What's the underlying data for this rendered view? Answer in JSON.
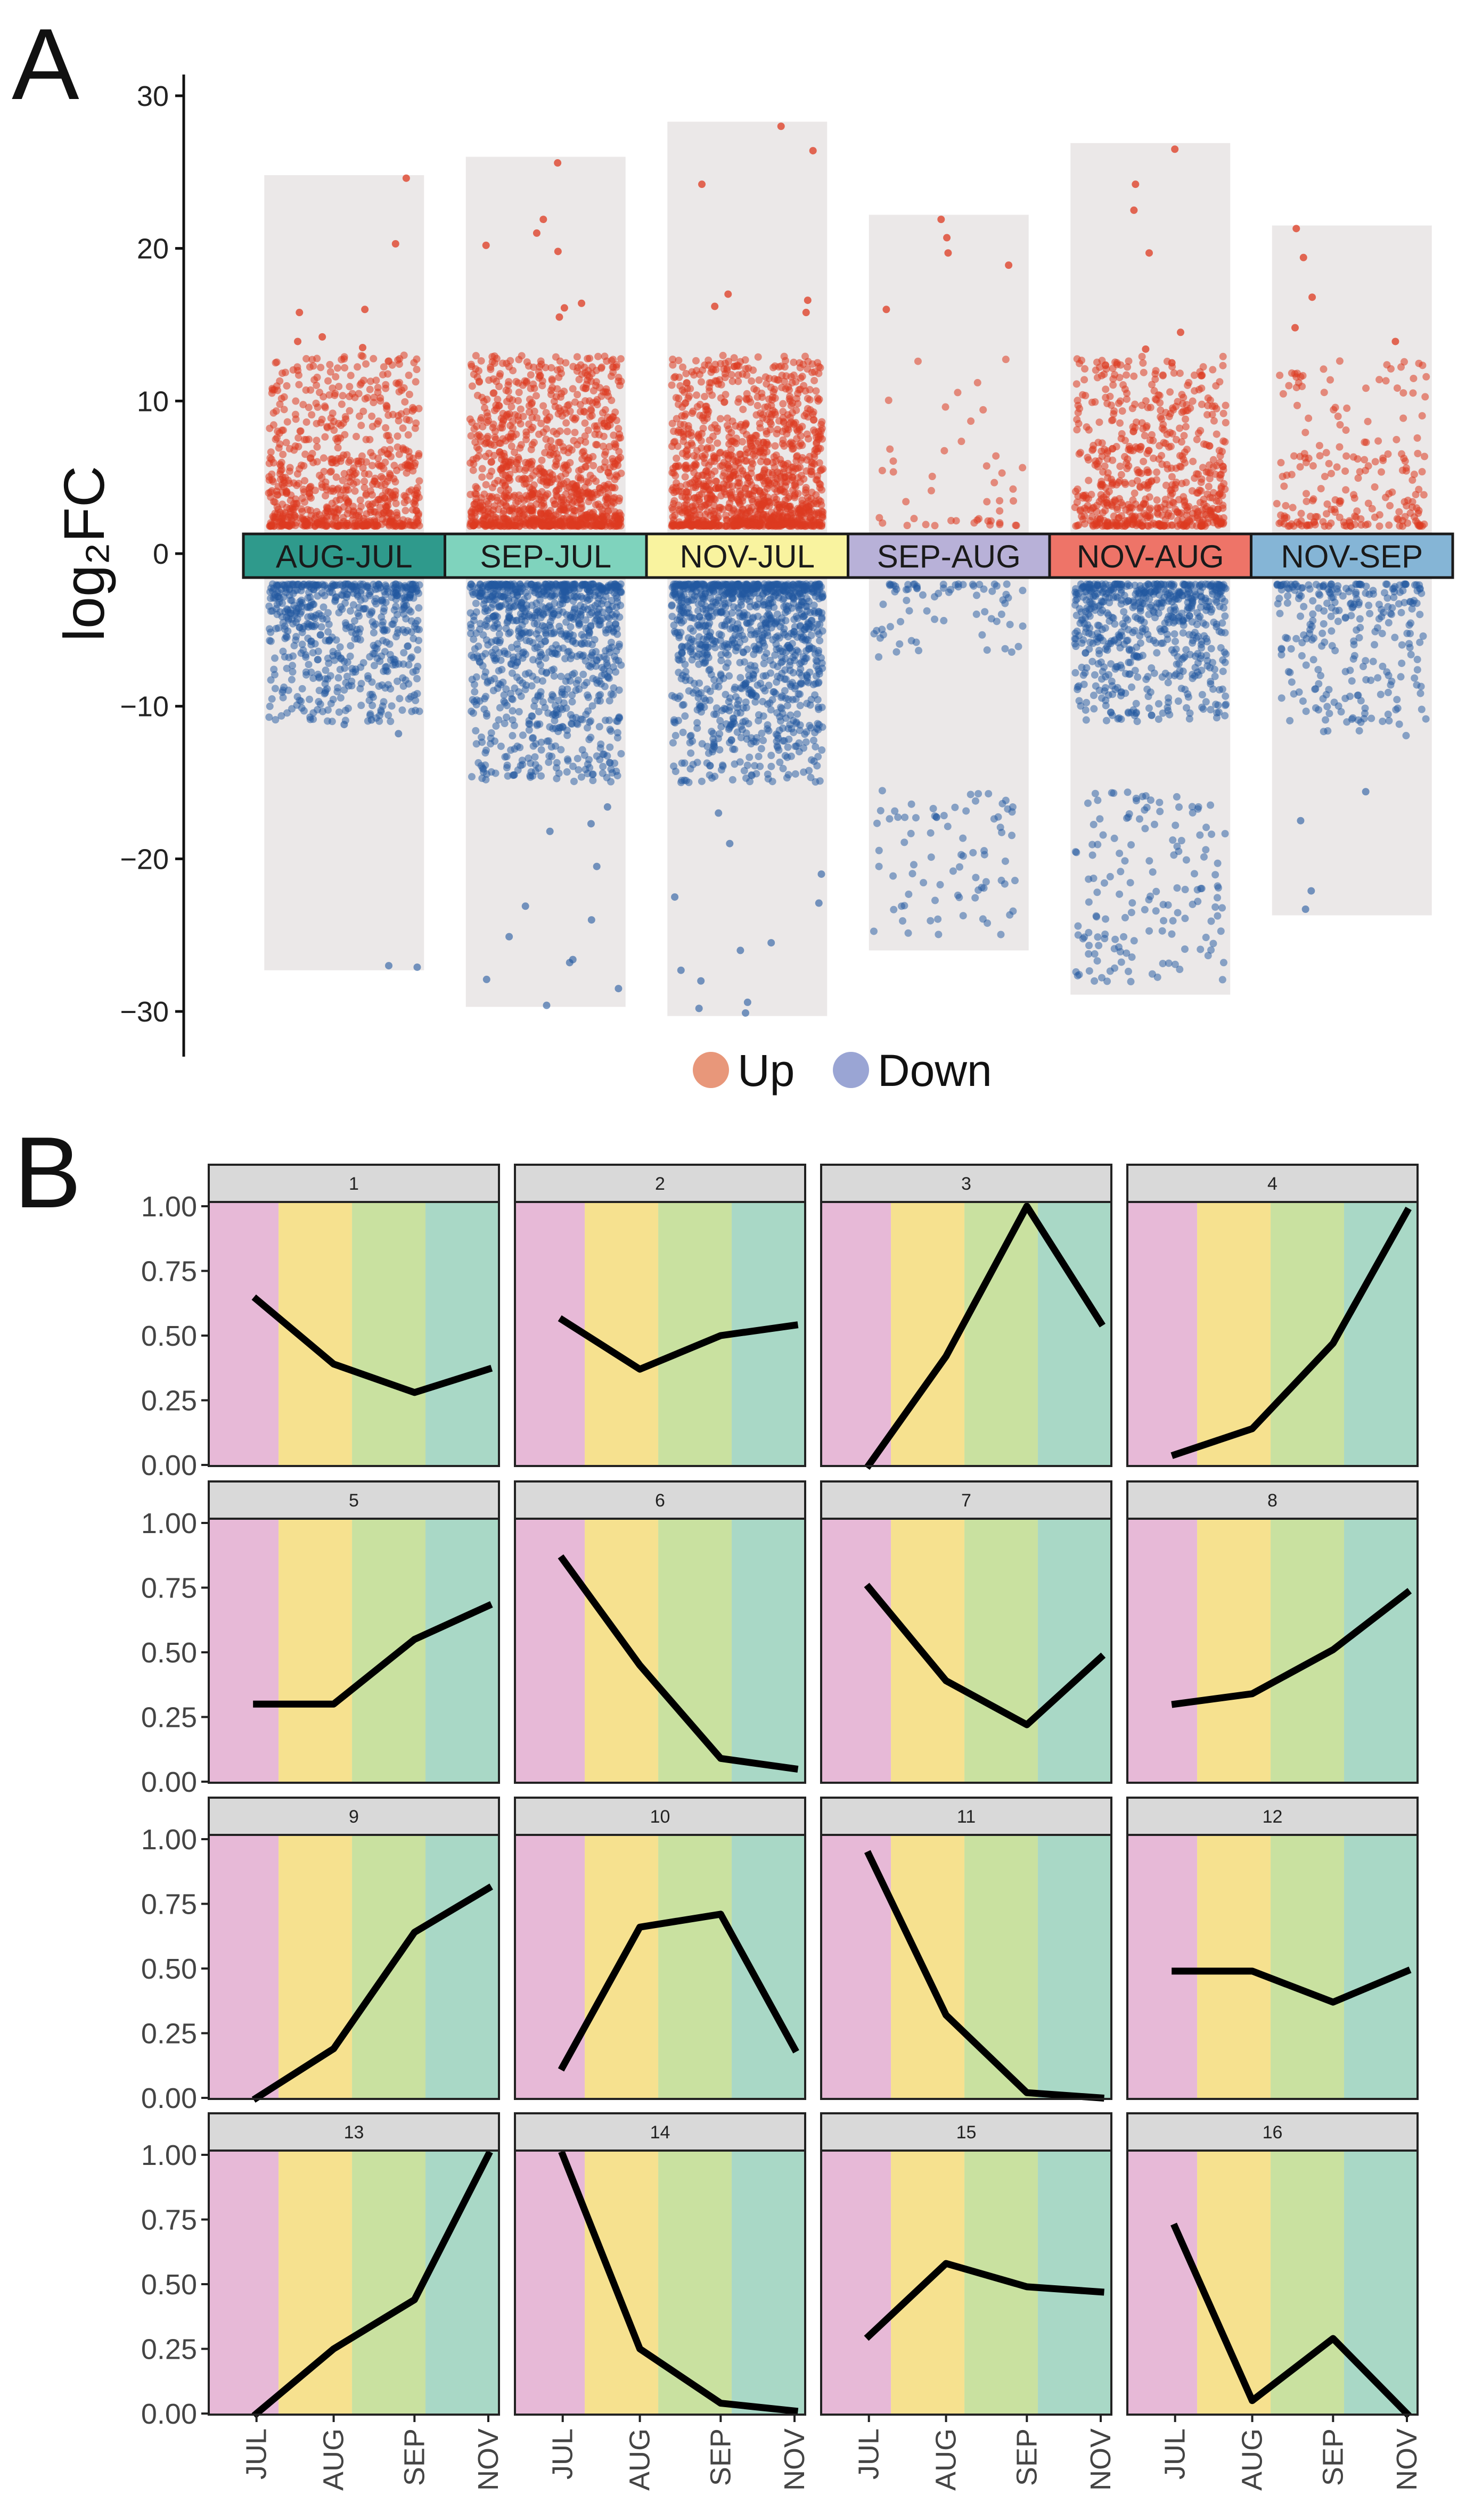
{
  "panel_labels": {
    "a": "A",
    "b": "B"
  },
  "colors": {
    "up": "#dd3a20",
    "up_legend": "#e8977a",
    "down": "#21579f",
    "down_legend": "#9aa5d4",
    "track": "#ebe8e8",
    "strip": "#d9d9d9",
    "jul_band": "#e7b9d7",
    "aug_band": "#f6e18f",
    "sep_band": "#c9e1a0",
    "nov_band": "#a9d8c6",
    "line": "#000000"
  },
  "chart_data": [
    {
      "type": "scatter",
      "title": "",
      "ylabel": "log₂FC",
      "ylim": [
        -32,
        31
      ],
      "yticks": [
        30,
        20,
        10,
        0,
        -10,
        -20,
        -30
      ],
      "ytick_labels": [
        "30",
        "20",
        "10",
        "0",
        "−10",
        "−20",
        "−30"
      ],
      "legend": {
        "placement": "bottom",
        "entries": [
          "Up",
          "Down"
        ]
      },
      "comparisons": [
        {
          "label": "AUG-JUL",
          "color": "#2f9a8c",
          "range": [
            -27.3,
            24.8
          ],
          "up_count": 700,
          "down_count": 560,
          "up_outliers": [
            24.6,
            20.3,
            16.0,
            15.8,
            14.2,
            13.9,
            13.5
          ],
          "down_outliers": [
            -27.0,
            -27.1,
            -11.2,
            -11.8,
            -10.9
          ]
        },
        {
          "label": "SEP-JUL",
          "color": "#7fd3bd",
          "range": [
            -29.7,
            26.0
          ],
          "up_count": 1000,
          "down_count": 900,
          "up_outliers": [
            25.6,
            21.9,
            21.0,
            20.2,
            19.8,
            16.4,
            16.1,
            15.5
          ],
          "down_outliers": [
            -29.6,
            -28.5,
            -27.9,
            -26.8,
            -26.6,
            -25.1,
            -24.0,
            -23.1,
            -20.5,
            -18.2,
            -17.7,
            -16.6
          ]
        },
        {
          "label": "NOV-JUL",
          "color": "#f9f39f",
          "range": [
            -30.3,
            28.3
          ],
          "up_count": 1150,
          "down_count": 1050,
          "up_outliers": [
            28.0,
            26.4,
            24.2,
            17.0,
            16.6,
            16.2,
            15.8
          ],
          "down_outliers": [
            -30.1,
            -29.8,
            -29.4,
            -28.0,
            -27.3,
            -26.0,
            -25.5,
            -22.9,
            -22.5,
            -21.0,
            -19.0,
            -17.0
          ]
        },
        {
          "label": "SEP-AUG",
          "color": "#b8b1d8",
          "range": [
            -26.0,
            22.2
          ],
          "up_count": 45,
          "down_count": 150,
          "up_outliers": [
            21.9,
            20.7,
            19.7,
            18.9,
            16.0
          ],
          "down_outliers": []
        },
        {
          "label": "NOV-AUG",
          "color": "#ee7468",
          "range": [
            -28.9,
            26.9
          ],
          "up_count": 600,
          "down_count": 750,
          "up_outliers": [
            26.5,
            24.2,
            22.5,
            19.7,
            14.5,
            13.4,
            12.5
          ],
          "down_outliers": []
        },
        {
          "label": "NOV-SEP",
          "color": "#85b5d6",
          "range": [
            -23.7,
            21.5
          ],
          "up_count": 200,
          "down_count": 260,
          "up_outliers": [
            21.3,
            19.4,
            16.8,
            14.8,
            13.9
          ],
          "down_outliers": [
            -23.3,
            -22.1,
            -17.5,
            -15.6
          ]
        }
      ]
    },
    {
      "type": "line",
      "title": "",
      "xlabel": "",
      "ylabel": "",
      "categories": [
        "JUL",
        "AUG",
        "SEP",
        "NOV"
      ],
      "ylim": [
        0,
        1
      ],
      "yticks": [
        0,
        0.25,
        0.5,
        0.75,
        1
      ],
      "ytick_labels": [
        "0.00",
        "0.25",
        "0.50",
        "0.75",
        "1.00"
      ],
      "series": [
        {
          "name": "1",
          "values": [
            0.64,
            0.39,
            0.28,
            0.37
          ]
        },
        {
          "name": "2",
          "values": [
            0.56,
            0.37,
            0.5,
            0.54
          ]
        },
        {
          "name": "3",
          "values": [
            0.0,
            0.42,
            1.0,
            0.55
          ]
        },
        {
          "name": "4",
          "values": [
            0.04,
            0.14,
            0.47,
            0.98
          ]
        },
        {
          "name": "5",
          "values": [
            0.3,
            0.3,
            0.55,
            0.68
          ]
        },
        {
          "name": "6",
          "values": [
            0.86,
            0.45,
            0.09,
            0.05
          ]
        },
        {
          "name": "7",
          "values": [
            0.75,
            0.39,
            0.22,
            0.48
          ]
        },
        {
          "name": "8",
          "values": [
            0.3,
            0.34,
            0.51,
            0.73
          ]
        },
        {
          "name": "9",
          "values": [
            0.0,
            0.19,
            0.64,
            0.81
          ]
        },
        {
          "name": "10",
          "values": [
            0.12,
            0.66,
            0.71,
            0.19
          ]
        },
        {
          "name": "11",
          "values": [
            0.94,
            0.32,
            0.02,
            0.0
          ]
        },
        {
          "name": "12",
          "values": [
            0.49,
            0.49,
            0.37,
            0.49
          ]
        },
        {
          "name": "13",
          "values": [
            0.0,
            0.25,
            0.44,
            1.0
          ]
        },
        {
          "name": "14",
          "values": [
            1.0,
            0.25,
            0.04,
            0.01
          ]
        },
        {
          "name": "15",
          "values": [
            0.3,
            0.58,
            0.49,
            0.47
          ]
        },
        {
          "name": "16",
          "values": [
            0.72,
            0.05,
            0.29,
            0.0
          ]
        }
      ]
    }
  ]
}
